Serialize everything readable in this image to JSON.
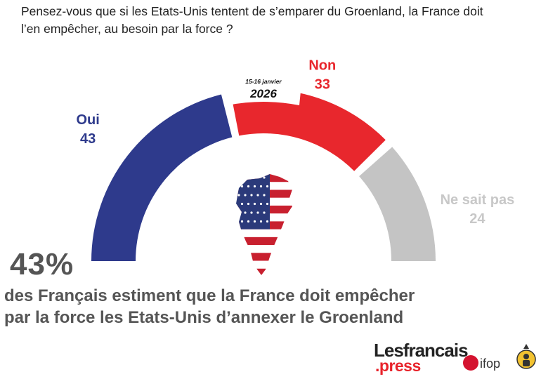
{
  "question": "Pensez-vous que si les Etats-Unis tentent de s’emparer du Groenland, la France doit l’en empêcher, au besoin par la force ?",
  "chart_data": {
    "type": "pie",
    "subtype": "semicircle",
    "date_label": "15-16 janvier",
    "year_label": "2026",
    "slices": [
      {
        "label": "Oui",
        "value": 43,
        "color": "#2e3a8c"
      },
      {
        "label": "Non",
        "value": 33,
        "color": "#e8272d"
      },
      {
        "label": "Ne sait pas",
        "value": 24,
        "color": "#c4c4c4"
      }
    ]
  },
  "headline_value": "43%",
  "conclusion_line1": "des Français estiment que la France doit empêcher",
  "conclusion_line2": "par la force les Etats-Unis d’annexer le Groenland",
  "logos": {
    "brand": "Lesfrancais",
    "brand_suffix": ".press",
    "partner": "ifop"
  }
}
